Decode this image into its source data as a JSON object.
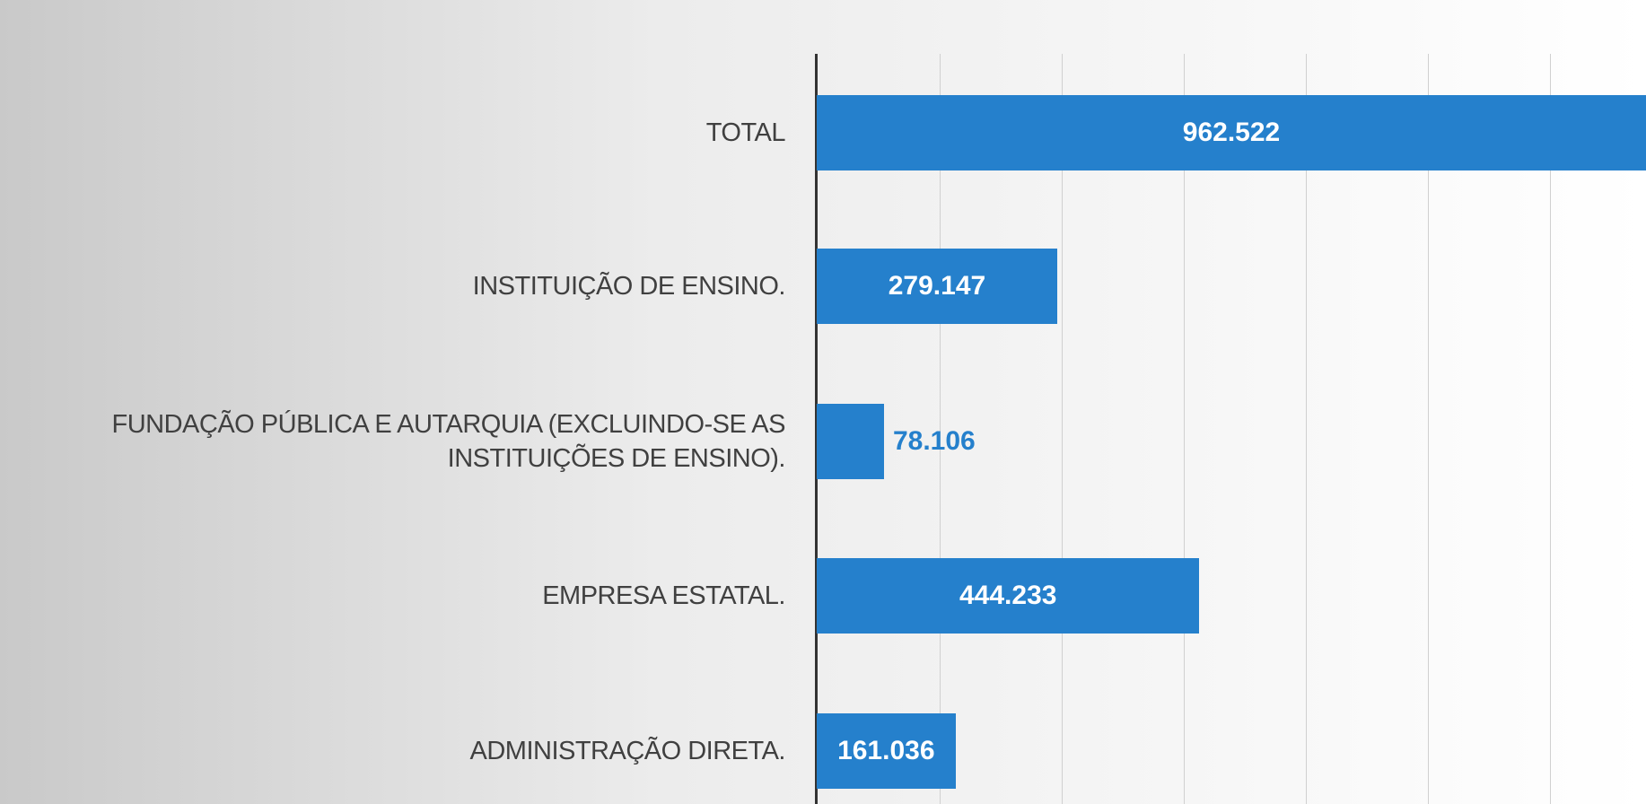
{
  "chart_data": {
    "type": "barh",
    "categories": [
      "TOTAL",
      "INSTITUIÇÃO DE ENSINO.",
      "FUNDAÇÃO PÚBLICA E AUTARQUIA (EXCLUINDO-SE AS INSTITUIÇÕES DE ENSINO).",
      "EMPRESA ESTATAL.",
      "ADMINISTRAÇÃO DIRETA."
    ],
    "values": [
      962522,
      279147,
      78106,
      444233,
      161036
    ],
    "value_labels": [
      "962.522",
      "279.147",
      "78.106",
      "444.233",
      "161.036"
    ],
    "color": "#2580cc",
    "grid": true
  }
}
